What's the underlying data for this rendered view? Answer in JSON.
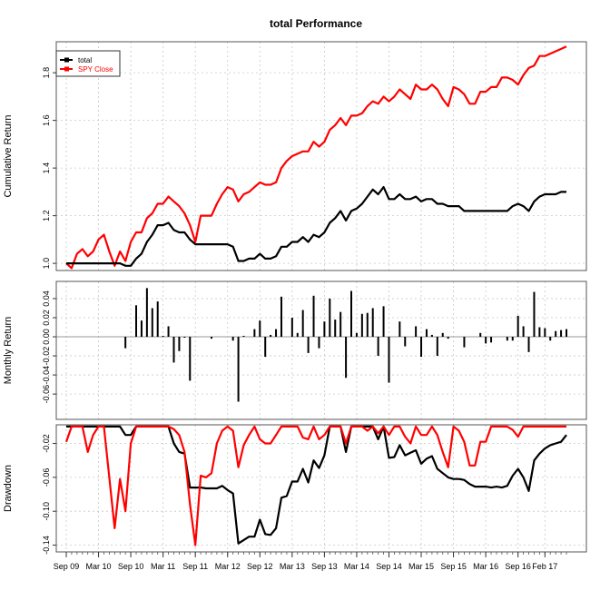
{
  "chart_data": {
    "type": "line",
    "title": "total Performance",
    "x_ticks": [
      "Sep 09",
      "Mar 10",
      "Sep 10",
      "Mar 11",
      "Sep 11",
      "Mar 12",
      "Sep 12",
      "Mar 13",
      "Sep 13",
      "Mar 14",
      "Sep 14",
      "Mar 15",
      "Sep 15",
      "Mar 16",
      "Sep 16",
      "Feb 17"
    ],
    "x_tick_positions": [
      0,
      6,
      12,
      18,
      24,
      30,
      36,
      42,
      48,
      54,
      60,
      66,
      72,
      78,
      84,
      89
    ],
    "n_periods": 94,
    "grid": true,
    "legend": {
      "placement": "top-left",
      "entries": [
        {
          "label": "total",
          "color": "#000000"
        },
        {
          "label": "SPY Close",
          "color": "#ff0000"
        }
      ]
    },
    "panels": [
      {
        "id": "cumulative",
        "ylabel": "Cumulative Return",
        "ylim": [
          0.97,
          1.93
        ],
        "yticks": [
          1.0,
          1.2,
          1.4,
          1.6,
          1.8
        ],
        "ytick_labels": [
          "1.0",
          "1.2",
          "1.4",
          "1.6",
          "1.8"
        ],
        "series": [
          {
            "name": "total",
            "color": "#000000",
            "values": [
              1.0,
              1.0,
              1.0,
              1.0,
              1.0,
              1.0,
              1.0,
              1.0,
              1.0,
              1.0,
              1.0,
              0.99,
              0.99,
              1.02,
              1.04,
              1.09,
              1.12,
              1.16,
              1.16,
              1.17,
              1.14,
              1.13,
              1.13,
              1.1,
              1.08,
              1.08,
              1.08,
              1.08,
              1.08,
              1.08,
              1.08,
              1.07,
              1.01,
              1.01,
              1.02,
              1.02,
              1.04,
              1.02,
              1.02,
              1.03,
              1.07,
              1.07,
              1.09,
              1.09,
              1.11,
              1.09,
              1.12,
              1.11,
              1.13,
              1.17,
              1.19,
              1.22,
              1.18,
              1.22,
              1.23,
              1.25,
              1.28,
              1.31,
              1.29,
              1.32,
              1.27,
              1.27,
              1.29,
              1.27,
              1.27,
              1.28,
              1.26,
              1.27,
              1.27,
              1.25,
              1.25,
              1.24,
              1.24,
              1.24,
              1.22,
              1.22,
              1.22,
              1.22,
              1.22,
              1.22,
              1.22,
              1.22,
              1.22,
              1.24,
              1.25,
              1.24,
              1.22,
              1.26,
              1.28,
              1.29,
              1.29,
              1.29,
              1.3,
              1.3
            ]
          },
          {
            "name": "SPY Close",
            "color": "#ff0000",
            "values": [
              1.0,
              0.98,
              1.04,
              1.06,
              1.03,
              1.05,
              1.1,
              1.12,
              1.05,
              0.99,
              1.05,
              1.01,
              1.09,
              1.13,
              1.13,
              1.19,
              1.21,
              1.25,
              1.25,
              1.28,
              1.26,
              1.24,
              1.21,
              1.16,
              1.09,
              1.2,
              1.2,
              1.2,
              1.25,
              1.29,
              1.32,
              1.31,
              1.26,
              1.29,
              1.3,
              1.32,
              1.34,
              1.33,
              1.33,
              1.34,
              1.4,
              1.43,
              1.45,
              1.46,
              1.47,
              1.47,
              1.51,
              1.49,
              1.51,
              1.56,
              1.58,
              1.61,
              1.58,
              1.62,
              1.62,
              1.63,
              1.66,
              1.68,
              1.67,
              1.7,
              1.68,
              1.7,
              1.73,
              1.71,
              1.69,
              1.75,
              1.73,
              1.73,
              1.75,
              1.73,
              1.69,
              1.66,
              1.74,
              1.73,
              1.71,
              1.67,
              1.67,
              1.72,
              1.72,
              1.74,
              1.74,
              1.78,
              1.78,
              1.77,
              1.75,
              1.79,
              1.82,
              1.83,
              1.87,
              1.87,
              1.88,
              1.89,
              1.9,
              1.91
            ]
          }
        ]
      },
      {
        "id": "monthly",
        "ylabel": "Monthly Return",
        "type": "bar",
        "ylim": [
          -0.0865,
          0.058
        ],
        "yticks": [
          -0.06,
          -0.04,
          -0.02,
          0.0,
          0.02,
          0.04
        ],
        "ytick_labels": [
          "-0.06",
          "-0.04",
          "-0.02",
          "0.00",
          "0.02",
          "0.04"
        ],
        "series": [
          {
            "name": "total",
            "color": "#000000",
            "values": [
              0,
              0,
              0,
              0,
              0,
              0,
              0,
              0,
              0,
              0,
              0,
              -0.012,
              0,
              0.033,
              0.017,
              0.051,
              0.03,
              0.037,
              0.001,
              0.011,
              -0.027,
              -0.015,
              -0.001,
              -0.046,
              0,
              0,
              0,
              -0.002,
              0,
              0,
              0,
              -0.004,
              -0.068,
              0.001,
              0,
              0.008,
              0.017,
              -0.021,
              0.002,
              0.008,
              0.042,
              0,
              0.02,
              0.004,
              0.028,
              -0.017,
              0.043,
              -0.012,
              0.016,
              0.04,
              0.018,
              0.026,
              -0.043,
              0.048,
              0.004,
              0.024,
              0.025,
              0.03,
              -0.02,
              0.032,
              -0.048,
              0,
              0.016,
              -0.01,
              0,
              0.011,
              -0.021,
              0.008,
              0.002,
              -0.02,
              0.004,
              -0.002,
              0,
              0,
              -0.011,
              0,
              0,
              0.004,
              -0.007,
              -0.006,
              0,
              0,
              -0.004,
              -0.004,
              0.022,
              0.011,
              -0.016,
              0.047,
              0.01,
              0.009,
              -0.004,
              0.006,
              0.007,
              0.008
            ]
          }
        ]
      },
      {
        "id": "drawdown",
        "ylabel": "Drawdown",
        "ylim": [
          -0.148,
          0.002
        ],
        "yticks": [
          -0.14,
          -0.1,
          -0.06,
          -0.02
        ],
        "ytick_labels": [
          "-0.14",
          "-0.10",
          "-0.06",
          "-0.02"
        ],
        "series": [
          {
            "name": "total",
            "color": "#000000",
            "values": [
              0,
              0,
              0,
              0,
              0,
              0,
              0,
              0,
              0,
              0,
              0,
              -0.01,
              -0.01,
              0,
              0,
              0,
              0,
              0,
              0,
              0,
              -0.02,
              -0.03,
              -0.032,
              -0.072,
              -0.072,
              -0.072,
              -0.073,
              -0.073,
              -0.073,
              -0.07,
              -0.075,
              -0.079,
              -0.138,
              -0.134,
              -0.13,
              -0.13,
              -0.11,
              -0.127,
              -0.128,
              -0.12,
              -0.084,
              -0.082,
              -0.065,
              -0.065,
              -0.05,
              -0.066,
              -0.04,
              -0.049,
              -0.034,
              0,
              0,
              0,
              -0.03,
              0,
              0,
              0,
              0,
              0,
              -0.015,
              0,
              -0.037,
              -0.036,
              -0.022,
              -0.034,
              -0.031,
              -0.028,
              -0.044,
              -0.038,
              -0.035,
              -0.05,
              -0.055,
              -0.06,
              -0.062,
              -0.062,
              -0.063,
              -0.068,
              -0.071,
              -0.071,
              -0.071,
              -0.072,
              -0.071,
              -0.072,
              -0.07,
              -0.058,
              -0.05,
              -0.06,
              -0.076,
              -0.04,
              -0.032,
              -0.026,
              -0.022,
              -0.02,
              -0.018,
              -0.01
            ]
          },
          {
            "name": "SPY Close",
            "color": "#ff0000",
            "values": [
              -0.018,
              0,
              0,
              0,
              -0.03,
              -0.01,
              0,
              0,
              -0.06,
              -0.12,
              -0.062,
              -0.1,
              -0.02,
              0,
              0,
              0,
              0,
              0,
              0,
              0,
              -0.003,
              -0.01,
              -0.03,
              -0.092,
              -0.14,
              -0.058,
              -0.06,
              -0.055,
              -0.02,
              -0.005,
              0,
              -0.005,
              -0.048,
              -0.022,
              -0.01,
              0,
              -0.015,
              -0.02,
              -0.02,
              -0.01,
              0,
              0,
              0,
              0,
              -0.013,
              -0.015,
              0,
              -0.015,
              -0.01,
              0,
              0,
              0,
              -0.02,
              0,
              0,
              0,
              -0.005,
              0,
              -0.008,
              0,
              -0.01,
              0,
              0,
              -0.012,
              -0.02,
              0,
              -0.01,
              -0.01,
              0,
              -0.01,
              -0.03,
              -0.048,
              0,
              -0.005,
              -0.018,
              -0.046,
              -0.046,
              -0.018,
              -0.018,
              0,
              0,
              0,
              0,
              -0.004,
              -0.012,
              0,
              0,
              0,
              0,
              0,
              0,
              0,
              0,
              0
            ]
          }
        ]
      }
    ]
  }
}
